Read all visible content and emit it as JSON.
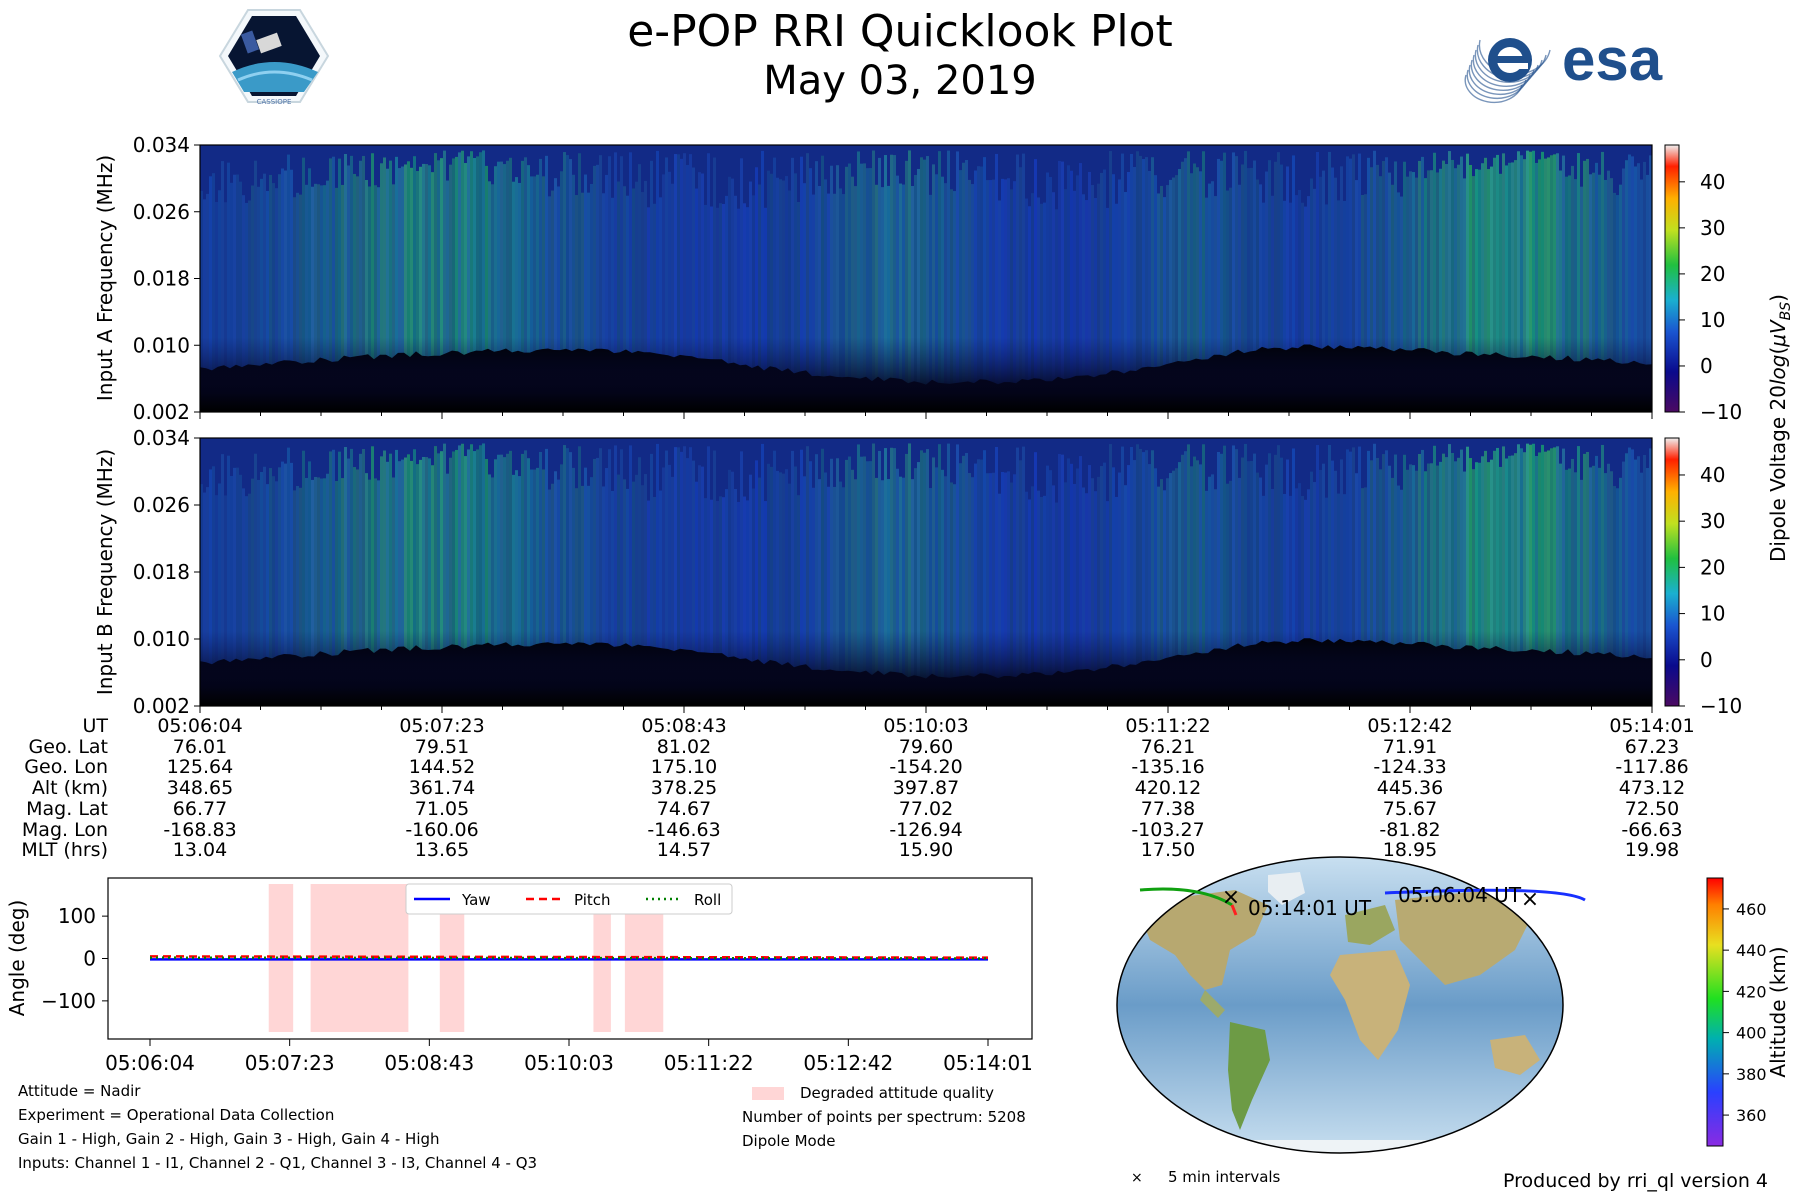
{
  "title": "e-POP RRI Quicklook Plot",
  "subtitle": "May 03, 2019",
  "logos": {
    "cassiope": "CASSIOPE",
    "esa": "esa"
  },
  "colors": {
    "background": "#ffffff",
    "spectrogram_low": "#000000",
    "spectrogram_mid": "#1533a8",
    "spectrogram_high": "#22b020",
    "yaw": "#0000ff",
    "pitch": "#ff0000",
    "roll": "#008000",
    "degraded": "#ffd6d6"
  },
  "chart_data": [
    {
      "type": "heatmap",
      "name": "Input A spectrogram",
      "ylabel": "Input A Frequency (MHz)",
      "yticks": [
        "0.002",
        "0.010",
        "0.018",
        "0.026",
        "0.034"
      ],
      "ylim": [
        0.002,
        0.034
      ],
      "xticks": [
        "05:06:04",
        "05:07:23",
        "05:08:43",
        "05:10:03",
        "05:11:22",
        "05:12:42",
        "05:14:01"
      ],
      "colorbar_label": "Dipole Voltage 20log(μV_BS)",
      "colorbar_ticks": [
        "40",
        "30",
        "20",
        "10",
        "0",
        "−10"
      ],
      "colorbar_range": [
        -10,
        48
      ]
    },
    {
      "type": "heatmap",
      "name": "Input B spectrogram",
      "ylabel": "Input B Frequency (MHz)",
      "yticks": [
        "0.002",
        "0.010",
        "0.018",
        "0.026",
        "0.034"
      ],
      "ylim": [
        0.002,
        0.034
      ],
      "colorbar_ticks": [
        "40",
        "30",
        "20",
        "10",
        "0",
        "−10"
      ],
      "colorbar_range": [
        -10,
        48
      ]
    },
    {
      "type": "line",
      "name": "Attitude",
      "ylabel": "Angle (deg)",
      "yticks": [
        "100",
        "0",
        "−100"
      ],
      "ylim": [
        -190,
        190
      ],
      "xticks": [
        "05:06:04",
        "05:07:23",
        "05:08:43",
        "05:10:03",
        "05:11:22",
        "05:12:42",
        "05:14:01"
      ],
      "x_seconds": [
        0,
        480
      ],
      "series": [
        {
          "name": "Yaw",
          "values": [
            -2,
            -2
          ]
        },
        {
          "name": "Pitch",
          "values": [
            5,
            2
          ]
        },
        {
          "name": "Roll",
          "values": [
            2,
            0
          ]
        }
      ],
      "degraded_intervals_seconds": [
        [
          68,
          82
        ],
        [
          92,
          148
        ],
        [
          166,
          180
        ],
        [
          254,
          264
        ],
        [
          272,
          294
        ]
      ],
      "legend_position": "top-right"
    },
    {
      "type": "scatter",
      "name": "Ground track map",
      "colorbar_label": "Altitude (km)",
      "colorbar_ticks": [
        "460",
        "440",
        "420",
        "400",
        "380",
        "360"
      ],
      "colorbar_range": [
        345,
        475
      ],
      "start_label": "05:06:04 UT",
      "end_label": "05:14:01 UT",
      "marker_legend": "5 min intervals"
    }
  ],
  "orbit_table": {
    "labels": [
      "UT",
      "Geo. Lat",
      "Geo. Lon",
      "Alt (km)",
      "Mag. Lat",
      "Mag. Lon",
      "MLT (hrs)"
    ],
    "columns": [
      [
        "05:06:04",
        "76.01",
        "125.64",
        "348.65",
        "66.77",
        "-168.83",
        "13.04"
      ],
      [
        "05:07:23",
        "79.51",
        "144.52",
        "361.74",
        "71.05",
        "-160.06",
        "13.65"
      ],
      [
        "05:08:43",
        "81.02",
        "175.10",
        "378.25",
        "74.67",
        "-146.63",
        "14.57"
      ],
      [
        "05:10:03",
        "79.60",
        "-154.20",
        "397.87",
        "77.02",
        "-126.94",
        "15.90"
      ],
      [
        "05:11:22",
        "76.21",
        "-135.16",
        "420.12",
        "77.38",
        "-103.27",
        "17.50"
      ],
      [
        "05:12:42",
        "71.91",
        "-124.33",
        "445.36",
        "75.67",
        "-81.82",
        "18.95"
      ],
      [
        "05:14:01",
        "67.23",
        "-117.86",
        "473.12",
        "72.50",
        "-66.63",
        "19.98"
      ]
    ]
  },
  "info_left": [
    "Attitude = Nadir",
    "Experiment = Operational Data Collection",
    "Gain 1 - High, Gain 2 - High, Gain 3 - High, Gain 4 - High",
    "Inputs: Channel 1 - I1, Channel 2 - Q1, Channel 3 - I3, Channel 4 - Q3"
  ],
  "info_right": {
    "degraded_label": "Degraded attitude quality",
    "points": "Number of points per spectrum: 5208",
    "mode": "Dipole Mode"
  },
  "footer": "Produced by rri_ql version 4"
}
